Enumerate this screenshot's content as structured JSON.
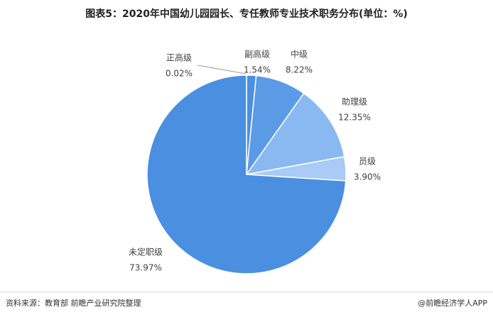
{
  "chart_data": {
    "type": "pie",
    "title": "图表5：2020年中国幼儿园园长、专任教师专业技术职务分布(单位：%)",
    "categories": [
      "正高级",
      "副高级",
      "中级",
      "助理级",
      "员级",
      "未定职级"
    ],
    "values": [
      0.02,
      1.54,
      8.22,
      12.35,
      3.9,
      73.97
    ],
    "value_labels": [
      "0.02%",
      "1.54%",
      "8.22%",
      "12.35%",
      "3.90%",
      "73.97%"
    ],
    "colors": [
      "#3a78c8",
      "#4a8fe0",
      "#5b9be6",
      "#8ab8f0",
      "#a9cbf5",
      "#4a8fe0"
    ],
    "source": "资料来源：教育部 前瞻产业研究院整理",
    "credit": "@前瞻经济学人APP"
  }
}
